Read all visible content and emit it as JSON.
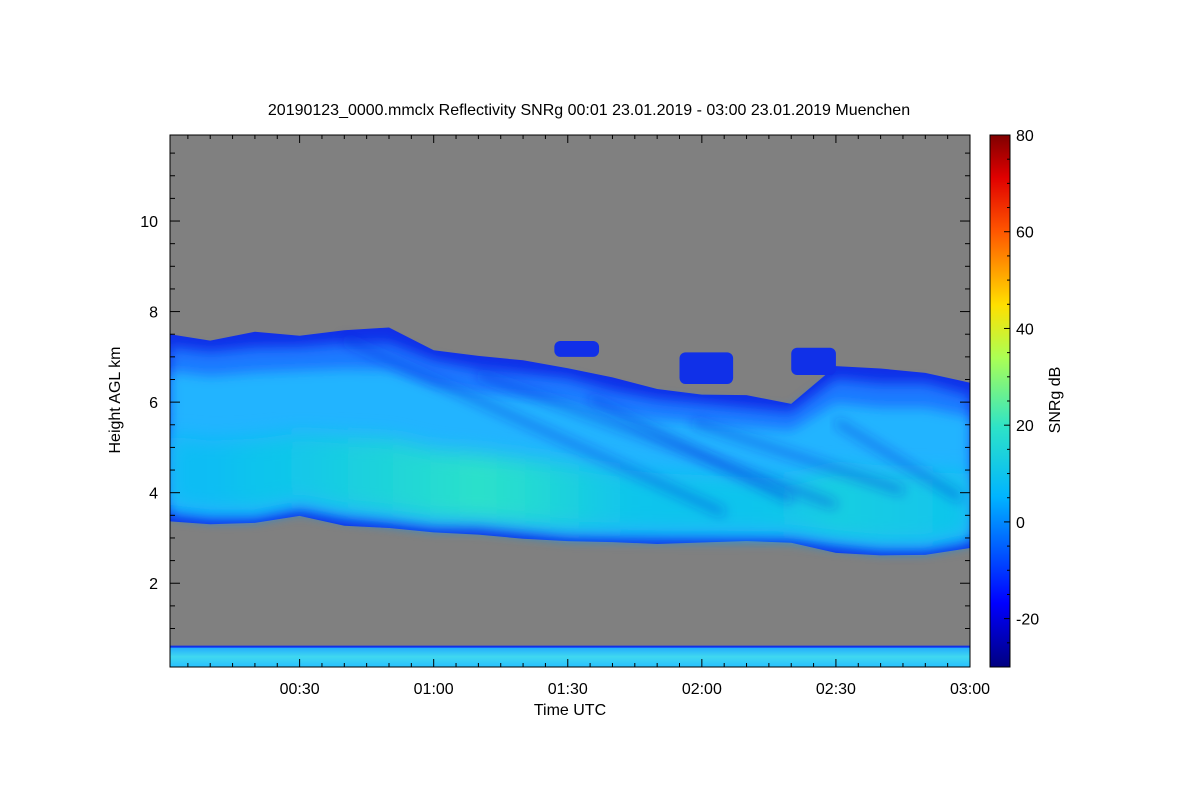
{
  "chart_data": {
    "type": "heatmap",
    "title": "20190123_0000.mmclx Reflectivity SNRg   00:01 23.01.2019 - 03:00 23.01.2019 Muenchen",
    "xlabel": "Time UTC",
    "ylabel": "Height AGL km",
    "colorbar_label": "SNRg dB",
    "x_range_minutes": [
      1,
      180
    ],
    "ylim": [
      0.15,
      11.9
    ],
    "x_ticks": [
      {
        "minutes": 30,
        "label": "00:30"
      },
      {
        "minutes": 60,
        "label": "01:00"
      },
      {
        "minutes": 90,
        "label": "01:30"
      },
      {
        "minutes": 120,
        "label": "02:00"
      },
      {
        "minutes": 150,
        "label": "02:30"
      },
      {
        "minutes": 180,
        "label": "03:00"
      }
    ],
    "y_ticks": [
      {
        "value": 2,
        "label": "2"
      },
      {
        "value": 4,
        "label": "4"
      },
      {
        "value": 6,
        "label": "6"
      },
      {
        "value": 8,
        "label": "8"
      },
      {
        "value": 10,
        "label": "10"
      }
    ],
    "colorbar_range": [
      -30,
      80
    ],
    "colorbar_ticks": [
      {
        "value": -20,
        "label": "-20"
      },
      {
        "value": 0,
        "label": "0"
      },
      {
        "value": 20,
        "label": "20"
      },
      {
        "value": 40,
        "label": "40"
      },
      {
        "value": 60,
        "label": "60"
      },
      {
        "value": 80,
        "label": "80"
      }
    ],
    "background_color": "#808080",
    "cloud_layer": {
      "time_minutes": [
        1,
        10,
        20,
        30,
        40,
        50,
        60,
        70,
        80,
        90,
        100,
        110,
        120,
        130,
        140,
        150,
        160,
        170,
        180
      ],
      "top_km": [
        7.5,
        7.4,
        7.5,
        7.5,
        7.6,
        7.6,
        7.2,
        7.0,
        6.9,
        6.8,
        6.5,
        6.3,
        6.2,
        6.1,
        6.0,
        6.8,
        6.7,
        6.7,
        6.4
      ],
      "base_km": [
        3.4,
        3.3,
        3.3,
        3.5,
        3.3,
        3.2,
        3.1,
        3.1,
        3.0,
        2.9,
        2.9,
        2.9,
        2.9,
        2.9,
        2.9,
        2.7,
        2.6,
        2.6,
        2.8
      ],
      "peak_snr_db": [
        8,
        8,
        10,
        11,
        13,
        15,
        17,
        19,
        17,
        14,
        11,
        10,
        10,
        10,
        11,
        13,
        12,
        11,
        10
      ]
    },
    "surface_layer": {
      "top_km": 0.6,
      "base_km": 0.15,
      "snr_db": 5
    },
    "elevated_echoes": [
      {
        "time_minutes": [
          87,
          97
        ],
        "bottom_km": 7.0,
        "top_km": 7.35
      },
      {
        "time_minutes": [
          115,
          127
        ],
        "bottom_km": 6.4,
        "top_km": 7.1
      },
      {
        "time_minutes": [
          140,
          150
        ],
        "bottom_km": 6.6,
        "top_km": 7.2
      }
    ]
  }
}
